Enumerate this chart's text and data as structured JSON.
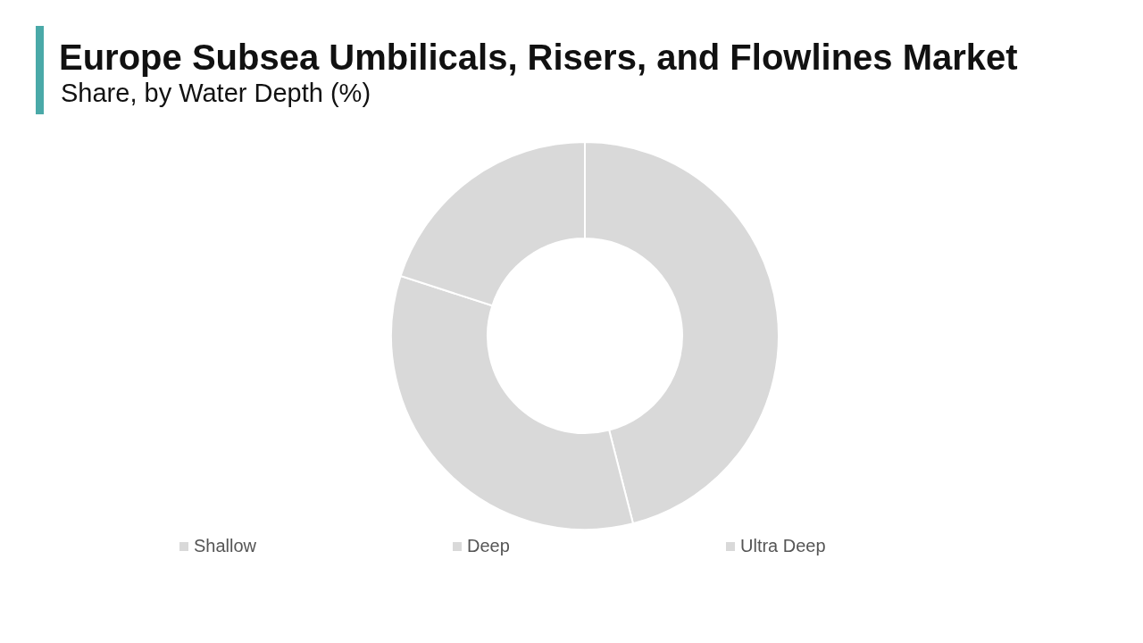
{
  "chart_data": {
    "type": "donut",
    "title": "Europe Subsea Umbilicals, Risers, and Flowlines Market",
    "subtitle": "Share, by Water Depth (%)",
    "categories": [
      "Shallow",
      "Deep",
      "Ultra Deep"
    ],
    "values": [
      46,
      34,
      20
    ],
    "colors": [
      "#d9d9d9",
      "#d9d9d9",
      "#d9d9d9"
    ],
    "legend": "bottom"
  }
}
